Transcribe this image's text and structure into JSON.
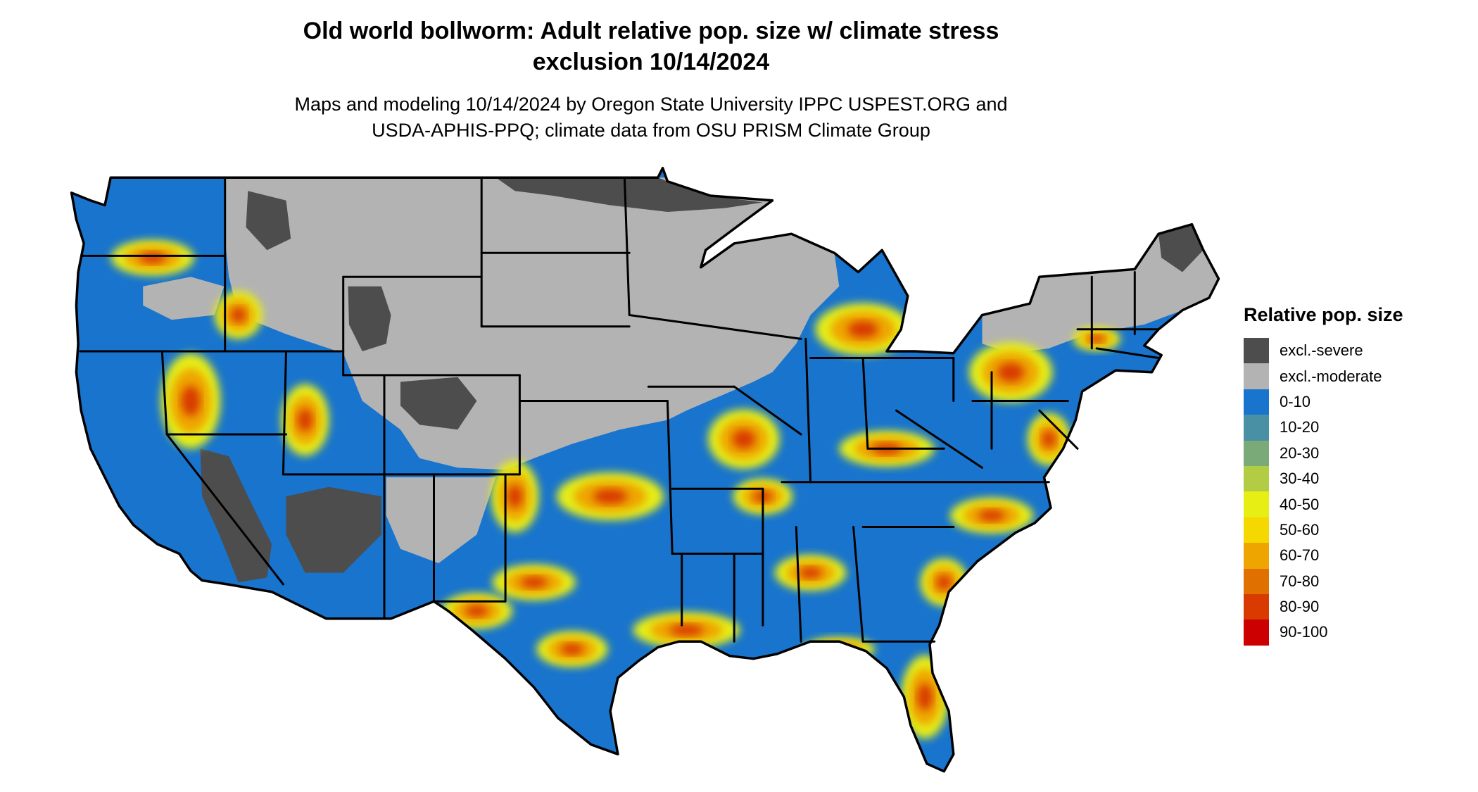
{
  "header": {
    "title_lines": [
      "Old world bollworm: Adult relative pop. size w/ climate stress",
      "exclusion 10/14/2024"
    ],
    "subtitle_lines": [
      "Maps and modeling 10/14/2024 by Oregon State University IPPC USPEST.ORG and",
      "USDA-APHIS-PPQ; climate data from OSU PRISM Climate Group"
    ]
  },
  "legend": {
    "title": "Relative pop. size",
    "items": [
      {
        "label": "excl.-severe",
        "color": "#4d4d4d"
      },
      {
        "label": "excl.-moderate",
        "color": "#b3b3b3"
      },
      {
        "label": "0-10",
        "color": "#1874cd"
      },
      {
        "label": "10-20",
        "color": "#4a90a4"
      },
      {
        "label": "20-30",
        "color": "#7aaa78"
      },
      {
        "label": "30-40",
        "color": "#b2cc44"
      },
      {
        "label": "40-50",
        "color": "#e6ee14"
      },
      {
        "label": "50-60",
        "color": "#f5d800"
      },
      {
        "label": "60-70",
        "color": "#eea500"
      },
      {
        "label": "70-80",
        "color": "#e07000"
      },
      {
        "label": "80-90",
        "color": "#d83a00"
      },
      {
        "label": "90-100",
        "color": "#cc0000"
      }
    ]
  }
}
